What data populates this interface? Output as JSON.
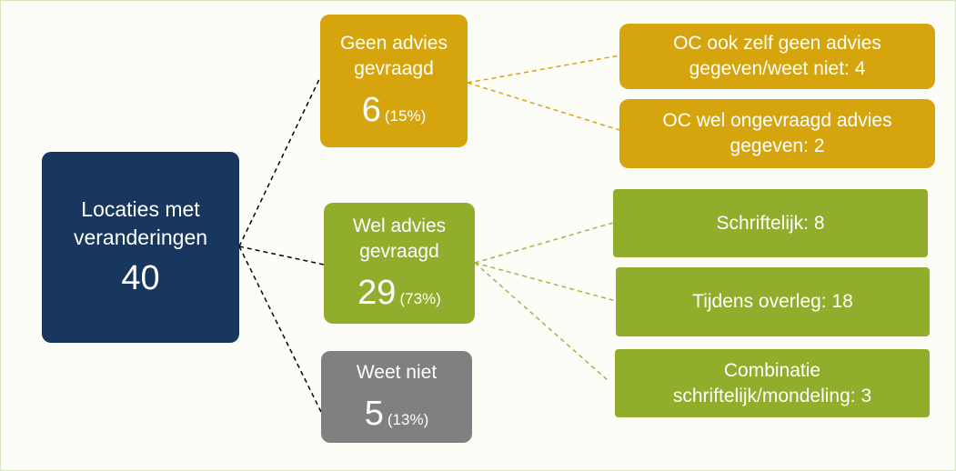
{
  "root": {
    "label": [
      "Locaties met",
      "veranderingen"
    ],
    "count": 40
  },
  "groups": [
    {
      "label": [
        "Geen advies",
        "gevraagd"
      ],
      "count": 6,
      "share": "(15%)"
    },
    {
      "label": [
        "Wel advies",
        "gevraagd"
      ],
      "count": 29,
      "share": "(73%)"
    },
    {
      "label": [
        "Weet niet"
      ],
      "count": 5,
      "share": "(13%)"
    }
  ],
  "details": [
    {
      "label": [
        "OC ook zelf geen advies",
        "gegeven/weet niet: 4"
      ]
    },
    {
      "label": [
        "OC wel ongevraagd advies",
        "gegeven: 2"
      ]
    },
    {
      "label": [
        "Schriftelijk: 8"
      ]
    },
    {
      "label": [
        "Tijdens overleg: 18"
      ]
    },
    {
      "label": [
        "Combinatie",
        "schriftelijk/mondeling: 3"
      ]
    }
  ]
}
